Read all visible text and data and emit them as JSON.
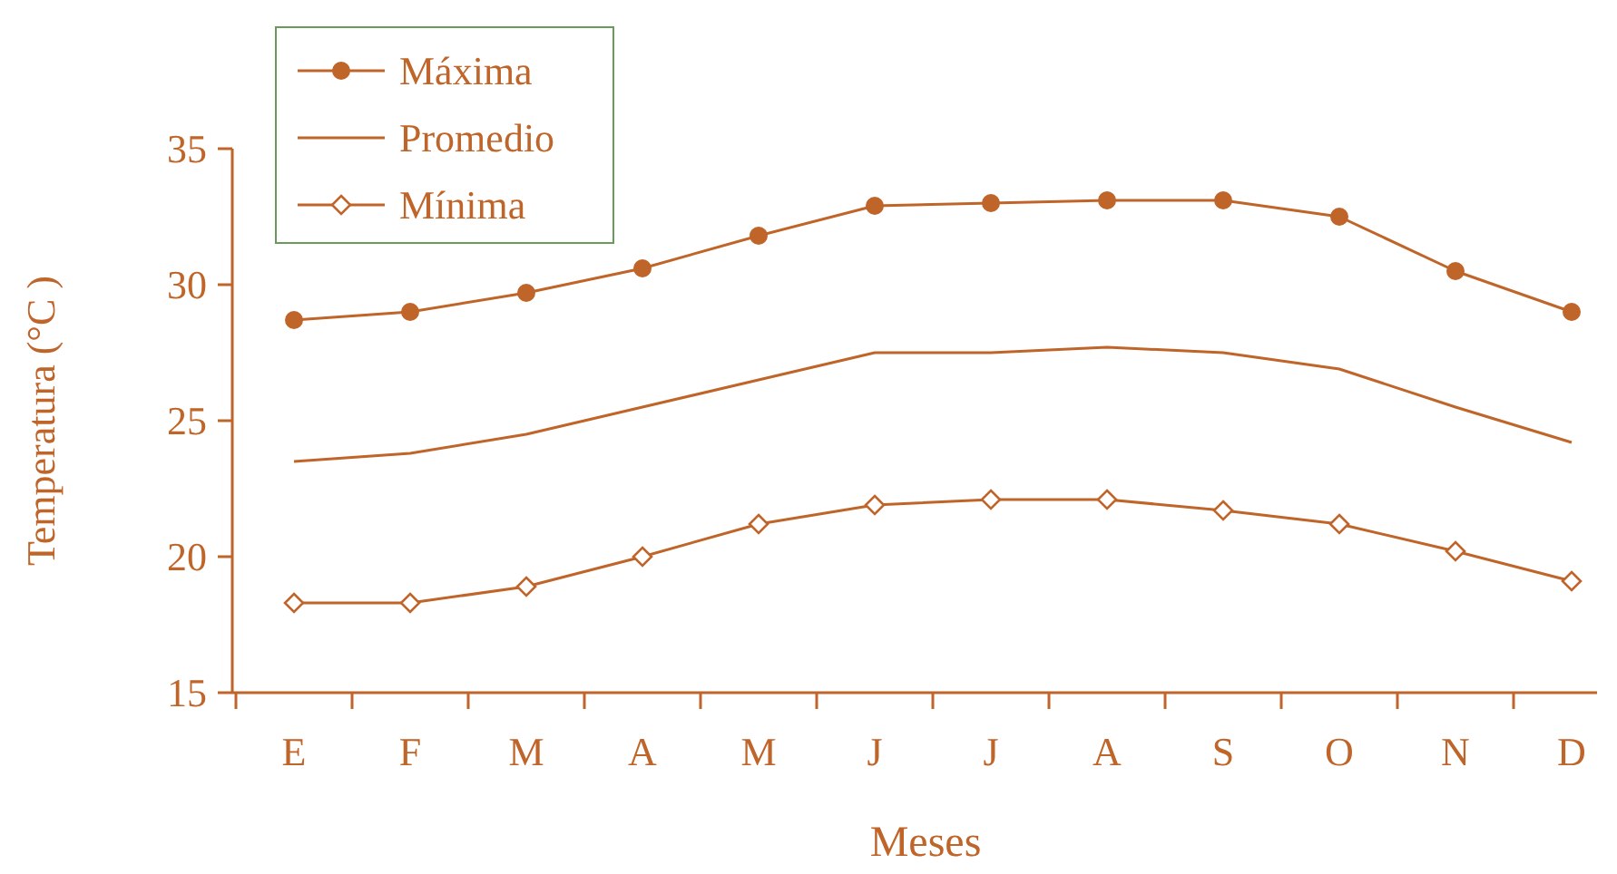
{
  "chart_data": {
    "type": "line",
    "xlabel": "Meses",
    "ylabel": "Temperatura (°C )",
    "categories": [
      "E",
      "F",
      "M",
      "A",
      "M",
      "J",
      "J",
      "A",
      "S",
      "O",
      "N",
      "D"
    ],
    "ylim": [
      15,
      35
    ],
    "yticks": [
      15,
      20,
      25,
      30,
      35
    ],
    "grid": false,
    "legend": "top left",
    "series": [
      {
        "name": "Máxima",
        "color": "#c0652a",
        "marker": "circle",
        "values": [
          28.7,
          29.0,
          29.7,
          30.6,
          31.8,
          32.9,
          33.0,
          33.1,
          33.1,
          32.5,
          30.5,
          29.0
        ]
      },
      {
        "name": "Promedio",
        "color": "#c0652a",
        "marker": "none",
        "values": [
          23.5,
          23.8,
          24.5,
          25.5,
          26.5,
          27.5,
          27.5,
          27.7,
          27.5,
          26.9,
          25.5,
          24.2
        ]
      },
      {
        "name": "Mínima",
        "color": "#c0652a",
        "marker": "diamond",
        "values": [
          18.3,
          18.3,
          18.9,
          20.0,
          21.2,
          21.9,
          22.1,
          22.1,
          21.7,
          21.2,
          20.2,
          19.1
        ]
      }
    ]
  }
}
